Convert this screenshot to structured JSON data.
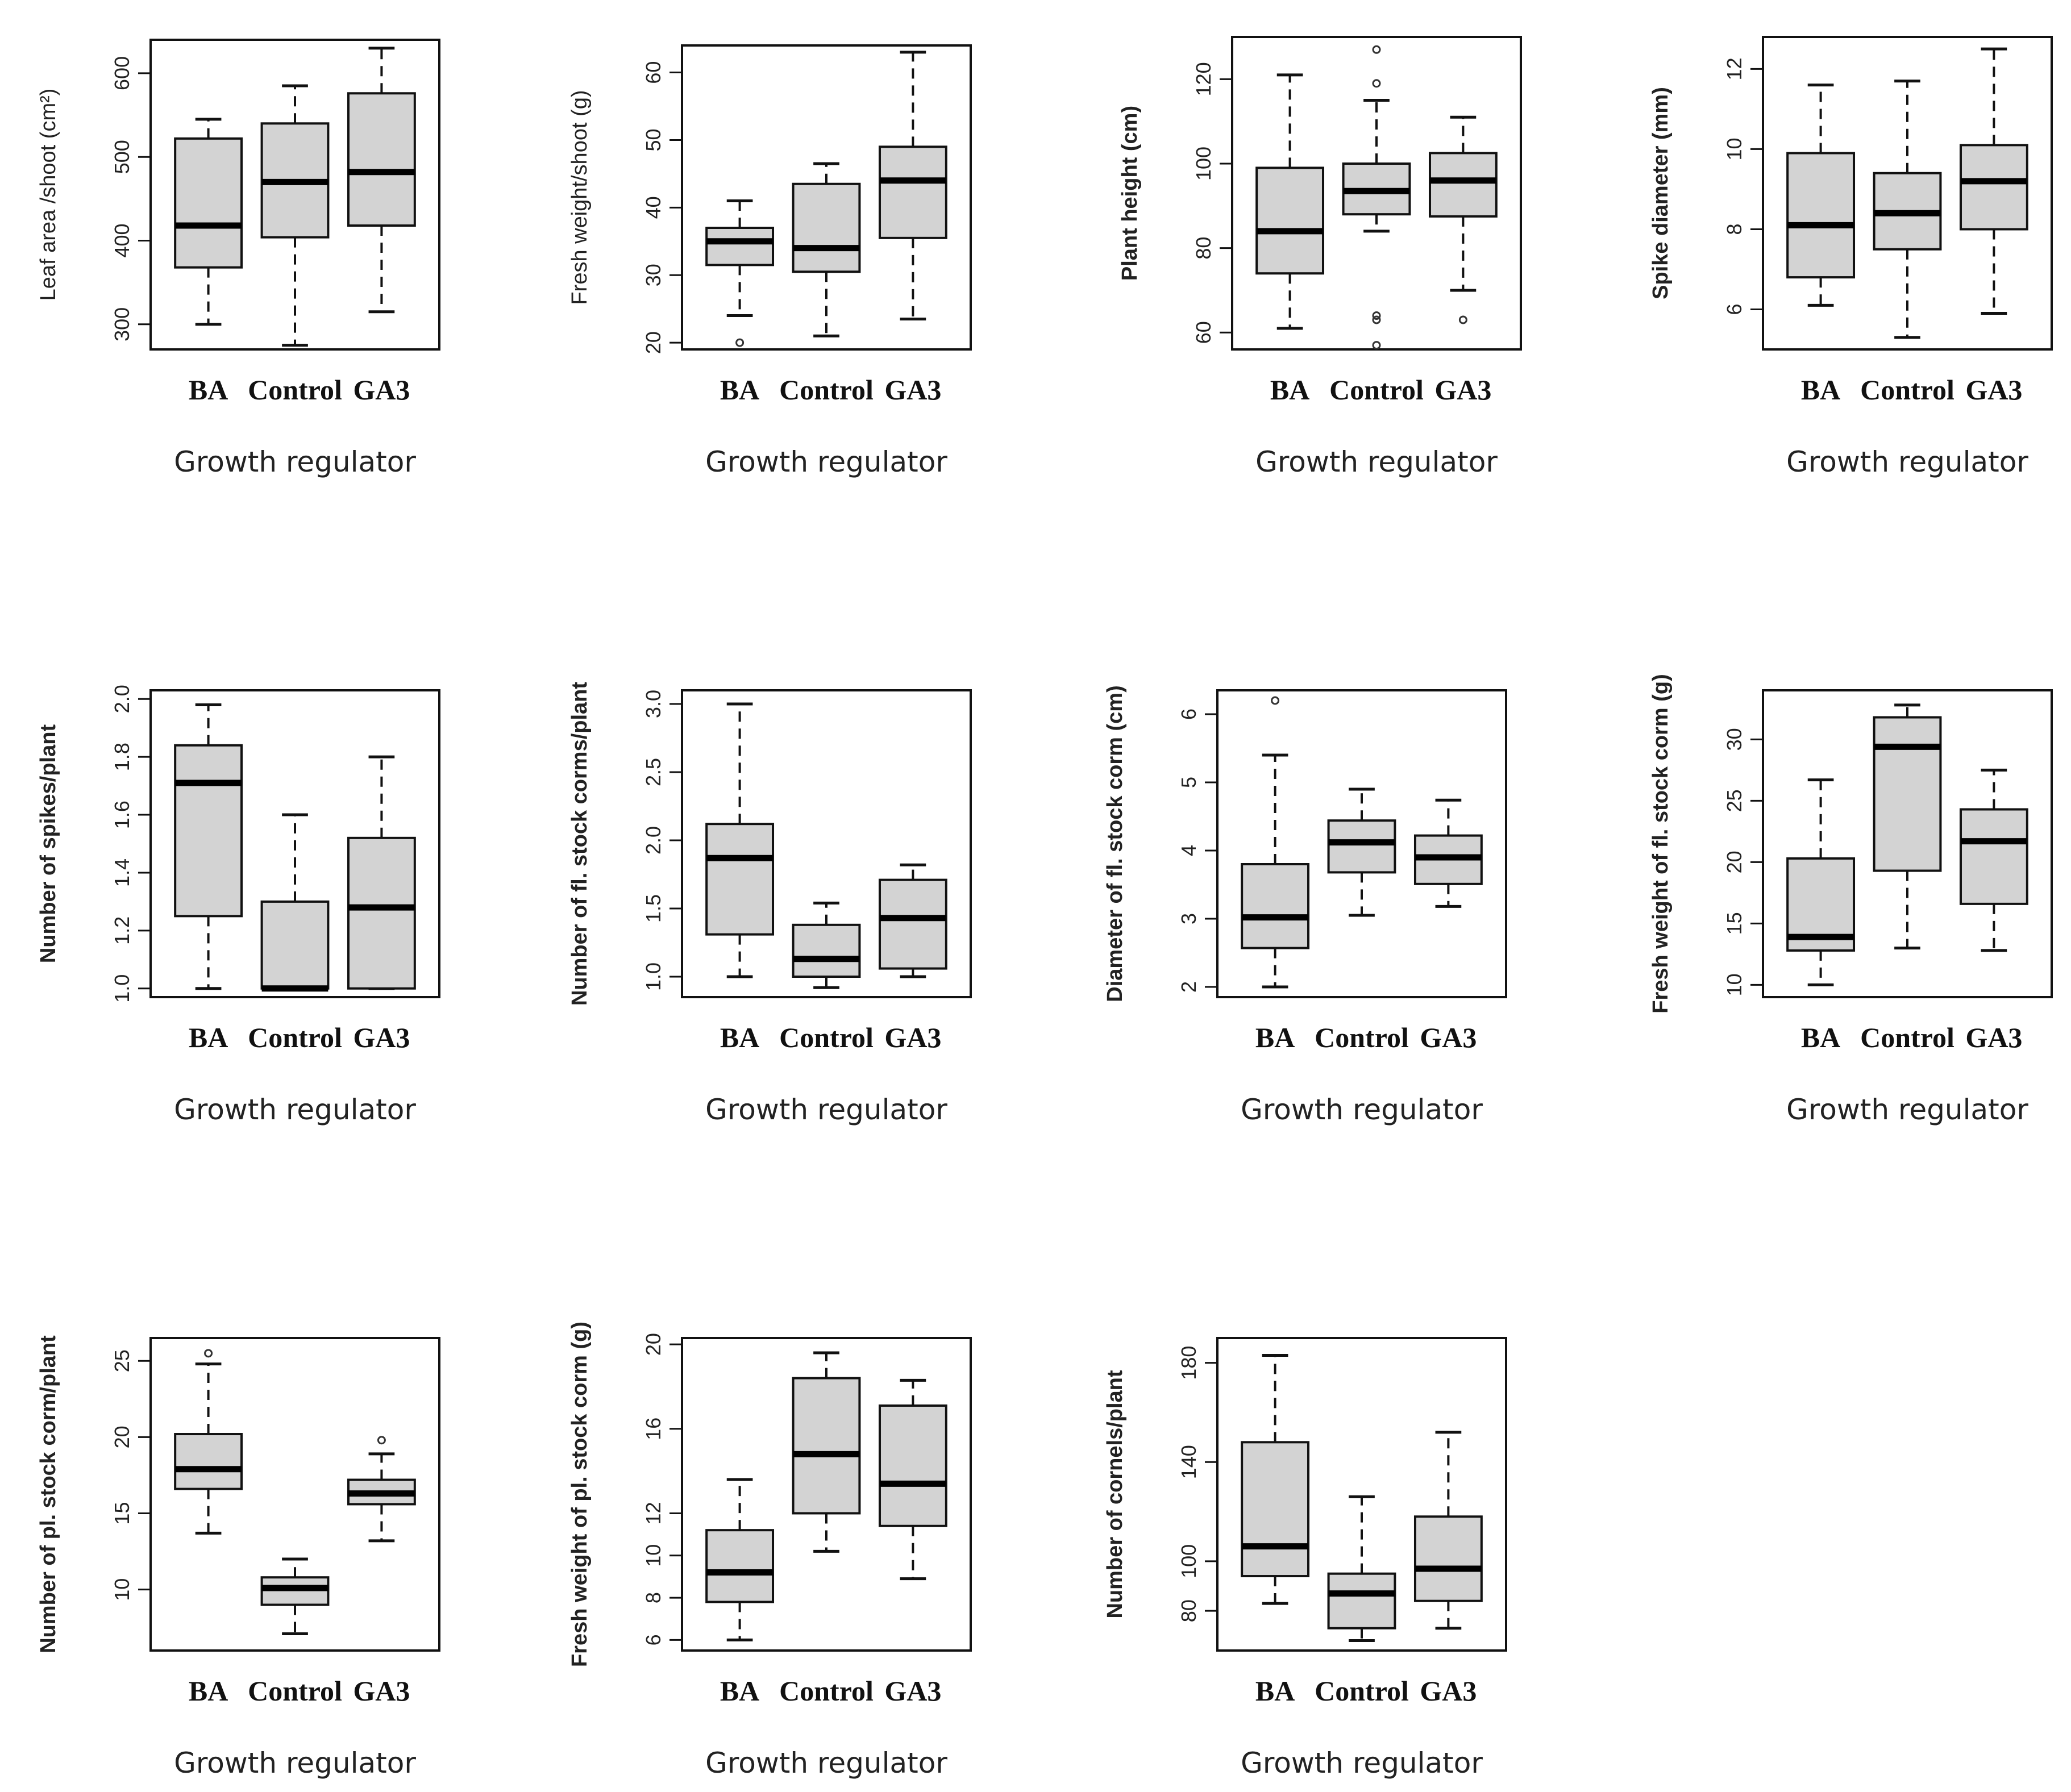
{
  "chart_data": [
    {
      "type": "box",
      "xlabel": "Growth regulator",
      "ylabel": "Leaf area /shoot (cm²)",
      "categories": [
        "BA",
        "Control",
        "GA3"
      ],
      "yticks": [
        300,
        400,
        500,
        600
      ],
      "ylim": [
        270,
        640
      ],
      "boxes": [
        {
          "whislo": 300,
          "q1": 368,
          "med": 418,
          "q3": 522,
          "whishi": 545,
          "fliers": []
        },
        {
          "whislo": 275,
          "q1": 404,
          "med": 470,
          "q3": 540,
          "whishi": 585,
          "fliers": []
        },
        {
          "whislo": 315,
          "q1": 418,
          "med": 482,
          "q3": 576,
          "whishi": 630,
          "fliers": []
        }
      ]
    },
    {
      "type": "box",
      "xlabel": "Growth regulator",
      "ylabel": "Fresh weight/shoot (g)",
      "categories": [
        "BA",
        "Control",
        "GA3"
      ],
      "yticks": [
        20,
        30,
        40,
        50,
        60
      ],
      "ylim": [
        19,
        64
      ],
      "boxes": [
        {
          "whislo": 24,
          "q1": 31.5,
          "med": 35,
          "q3": 37,
          "whishi": 41,
          "fliers": [
            20
          ]
        },
        {
          "whislo": 21,
          "q1": 30.5,
          "med": 34,
          "q3": 43.5,
          "whishi": 46.5,
          "fliers": []
        },
        {
          "whislo": 23.5,
          "q1": 35.5,
          "med": 44,
          "q3": 49,
          "whishi": 63,
          "fliers": []
        }
      ]
    },
    {
      "type": "box",
      "xlabel": "Growth regulator",
      "ylabel": "Plant height (cm)",
      "categories": [
        "BA",
        "Control",
        "GA3"
      ],
      "yticks": [
        60,
        80,
        100,
        120
      ],
      "ylim": [
        56,
        130
      ],
      "boxes": [
        {
          "whislo": 61,
          "q1": 74,
          "med": 84,
          "q3": 99,
          "whishi": 121,
          "fliers": []
        },
        {
          "whislo": 84,
          "q1": 88,
          "med": 93.5,
          "q3": 100,
          "whishi": 115,
          "fliers": [
            119,
            127,
            57,
            63,
            64
          ]
        },
        {
          "whislo": 70,
          "q1": 87.5,
          "med": 96,
          "q3": 102.5,
          "whishi": 111,
          "fliers": [
            63
          ]
        }
      ]
    },
    {
      "type": "box",
      "xlabel": "Growth regulator",
      "ylabel": "Spike diameter (mm)",
      "categories": [
        "BA",
        "Control",
        "GA3"
      ],
      "yticks": [
        6,
        8,
        10,
        12
      ],
      "ylim": [
        5,
        12.8
      ],
      "boxes": [
        {
          "whislo": 6.1,
          "q1": 6.8,
          "med": 8.1,
          "q3": 9.9,
          "whishi": 11.6,
          "fliers": []
        },
        {
          "whislo": 5.3,
          "q1": 7.5,
          "med": 8.4,
          "q3": 9.4,
          "whishi": 11.7,
          "fliers": []
        },
        {
          "whislo": 5.9,
          "q1": 8.0,
          "med": 9.2,
          "q3": 10.1,
          "whishi": 12.5,
          "fliers": []
        }
      ]
    },
    {
      "type": "box",
      "xlabel": "Growth regulator",
      "ylabel": "Number of spikes/plant",
      "categories": [
        "BA",
        "Control",
        "GA3"
      ],
      "yticks": [
        1.0,
        1.2,
        1.4,
        1.6,
        1.8,
        2.0
      ],
      "yticklabels": [
        "1.0",
        "1.2",
        "1.4",
        "1.6",
        "1.8",
        "2.0"
      ],
      "ylim": [
        0.97,
        2.03
      ],
      "boxes": [
        {
          "whislo": 1.0,
          "q1": 1.25,
          "med": 1.71,
          "q3": 1.84,
          "whishi": 1.98,
          "fliers": []
        },
        {
          "whislo": 1.0,
          "q1": 1.0,
          "med": 1.0,
          "q3": 1.3,
          "whishi": 1.6,
          "fliers": []
        },
        {
          "whislo": 1.0,
          "q1": 1.0,
          "med": 1.28,
          "q3": 1.52,
          "whishi": 1.8,
          "fliers": []
        }
      ]
    },
    {
      "type": "box",
      "xlabel": "Growth regulator",
      "ylabel": "Number of fl. stock corms/plant",
      "categories": [
        "BA",
        "Control",
        "GA3"
      ],
      "yticks": [
        1.0,
        1.5,
        2.0,
        2.5,
        3.0
      ],
      "yticklabels": [
        "1.0",
        "1.5",
        "2.0",
        "2.5",
        "3.0"
      ],
      "ylim": [
        0.85,
        3.1
      ],
      "boxes": [
        {
          "whislo": 1.0,
          "q1": 1.31,
          "med": 1.87,
          "q3": 2.12,
          "whishi": 3.0,
          "fliers": []
        },
        {
          "whislo": 0.92,
          "q1": 1.0,
          "med": 1.13,
          "q3": 1.38,
          "whishi": 1.54,
          "fliers": []
        },
        {
          "whislo": 1.0,
          "q1": 1.06,
          "med": 1.43,
          "q3": 1.71,
          "whishi": 1.82,
          "fliers": []
        }
      ]
    },
    {
      "type": "box",
      "xlabel": "Growth regulator",
      "ylabel": "Diameter of fl. stock corm (cm)",
      "categories": [
        "BA",
        "Control",
        "GA3"
      ],
      "yticks": [
        2,
        3,
        4,
        5,
        6
      ],
      "ylim": [
        1.85,
        6.35
      ],
      "boxes": [
        {
          "whislo": 2.0,
          "q1": 2.57,
          "med": 3.02,
          "q3": 3.8,
          "whishi": 5.4,
          "fliers": [
            6.2
          ]
        },
        {
          "whislo": 3.05,
          "q1": 3.68,
          "med": 4.12,
          "q3": 4.44,
          "whishi": 4.9,
          "fliers": []
        },
        {
          "whislo": 3.18,
          "q1": 3.51,
          "med": 3.9,
          "q3": 4.22,
          "whishi": 4.74,
          "fliers": []
        }
      ]
    },
    {
      "type": "box",
      "xlabel": "Growth regulator",
      "ylabel": "Fresh weight of fl. stock corm (g)",
      "categories": [
        "BA",
        "Control",
        "GA3"
      ],
      "yticks": [
        10,
        15,
        20,
        25,
        30
      ],
      "ylim": [
        9,
        34
      ],
      "boxes": [
        {
          "whislo": 10,
          "q1": 12.8,
          "med": 13.9,
          "q3": 20.3,
          "whishi": 26.7,
          "fliers": []
        },
        {
          "whislo": 13,
          "q1": 19.3,
          "med": 29.4,
          "q3": 31.8,
          "whishi": 32.8,
          "fliers": []
        },
        {
          "whislo": 12.8,
          "q1": 16.6,
          "med": 21.7,
          "q3": 24.3,
          "whishi": 27.5,
          "fliers": []
        }
      ]
    },
    {
      "type": "box",
      "xlabel": "Growth regulator",
      "ylabel": "Number of pl. stock corm/plant",
      "categories": [
        "BA",
        "Control",
        "GA3"
      ],
      "yticks": [
        10,
        15,
        20,
        25
      ],
      "ylim": [
        6,
        26.5
      ],
      "boxes": [
        {
          "whislo": 13.7,
          "q1": 16.6,
          "med": 17.9,
          "q3": 20.2,
          "whishi": 24.8,
          "fliers": [
            25.5
          ]
        },
        {
          "whislo": 7.1,
          "q1": 9.0,
          "med": 10.1,
          "q3": 10.8,
          "whishi": 12.0,
          "fliers": []
        },
        {
          "whislo": 13.2,
          "q1": 15.6,
          "med": 16.3,
          "q3": 17.2,
          "whishi": 18.9,
          "fliers": [
            19.8
          ]
        }
      ]
    },
    {
      "type": "box",
      "xlabel": "Growth regulator",
      "ylabel": "Fresh weight of pl. stock corm (g)",
      "categories": [
        "BA",
        "Control",
        "GA3"
      ],
      "yticks": [
        6,
        8,
        10,
        12,
        16,
        20
      ],
      "ylim": [
        5.5,
        20.3
      ],
      "boxes": [
        {
          "whislo": 6,
          "q1": 7.8,
          "med": 9.2,
          "q3": 11.2,
          "whishi": 13.6,
          "fliers": []
        },
        {
          "whislo": 10.2,
          "q1": 12.0,
          "med": 14.8,
          "q3": 18.4,
          "whishi": 19.6,
          "fliers": []
        },
        {
          "whislo": 8.9,
          "q1": 11.4,
          "med": 13.4,
          "q3": 17.1,
          "whishi": 18.3,
          "fliers": []
        }
      ]
    },
    {
      "type": "box",
      "xlabel": "Growth regulator",
      "ylabel": "Number of cornels/plant",
      "categories": [
        "BA",
        "Control",
        "GA3"
      ],
      "yticks": [
        80,
        100,
        140,
        180
      ],
      "ylim": [
        64,
        190
      ],
      "boxes": [
        {
          "whislo": 83,
          "q1": 94,
          "med": 106,
          "q3": 148,
          "whishi": 183,
          "fliers": []
        },
        {
          "whislo": 68,
          "q1": 73,
          "med": 87,
          "q3": 95,
          "whishi": 126,
          "fliers": []
        },
        {
          "whislo": 73,
          "q1": 84,
          "med": 97,
          "q3": 118,
          "whishi": 152,
          "fliers": []
        }
      ]
    }
  ]
}
